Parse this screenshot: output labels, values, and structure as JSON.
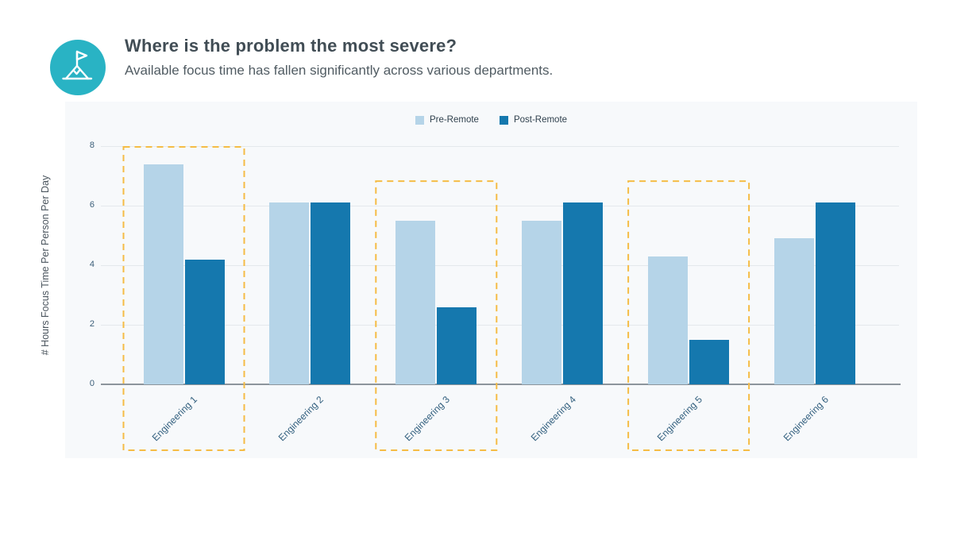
{
  "header": {
    "icon": "summit-flag-icon",
    "icon_color": "#29b3c4",
    "title": "Where is the problem the most severe?",
    "subtitle": "Available focus time has fallen significantly across various departments."
  },
  "chart_data": {
    "type": "bar",
    "title": "",
    "categories": [
      "Engineering 1",
      "Engineering 2",
      "Engineering 3",
      "Engineering 4",
      "Engineering 5",
      "Engineering 6"
    ],
    "series": [
      {
        "name": "Pre-Remote",
        "color": "#b5d4e8",
        "values": [
          7.4,
          6.1,
          5.5,
          5.5,
          4.3,
          4.9
        ]
      },
      {
        "name": "Post-Remote",
        "color": "#1578ae",
        "values": [
          4.2,
          6.1,
          2.6,
          6.1,
          1.5,
          6.1
        ]
      }
    ],
    "xlabel": "",
    "ylabel": "# Hours Focus Time Per Person Per Day",
    "ylim": [
      0,
      8
    ],
    "yticks": [
      0,
      2,
      4,
      6,
      8
    ],
    "grid": true,
    "legend_position": "top-center",
    "highlight_color": "#f5bc45",
    "highlights": [
      {
        "category": "Engineering 1",
        "top_value": 8.0
      },
      {
        "category": "Engineering 3",
        "top_value": 6.85
      },
      {
        "category": "Engineering 5",
        "top_value": 6.85
      }
    ]
  }
}
